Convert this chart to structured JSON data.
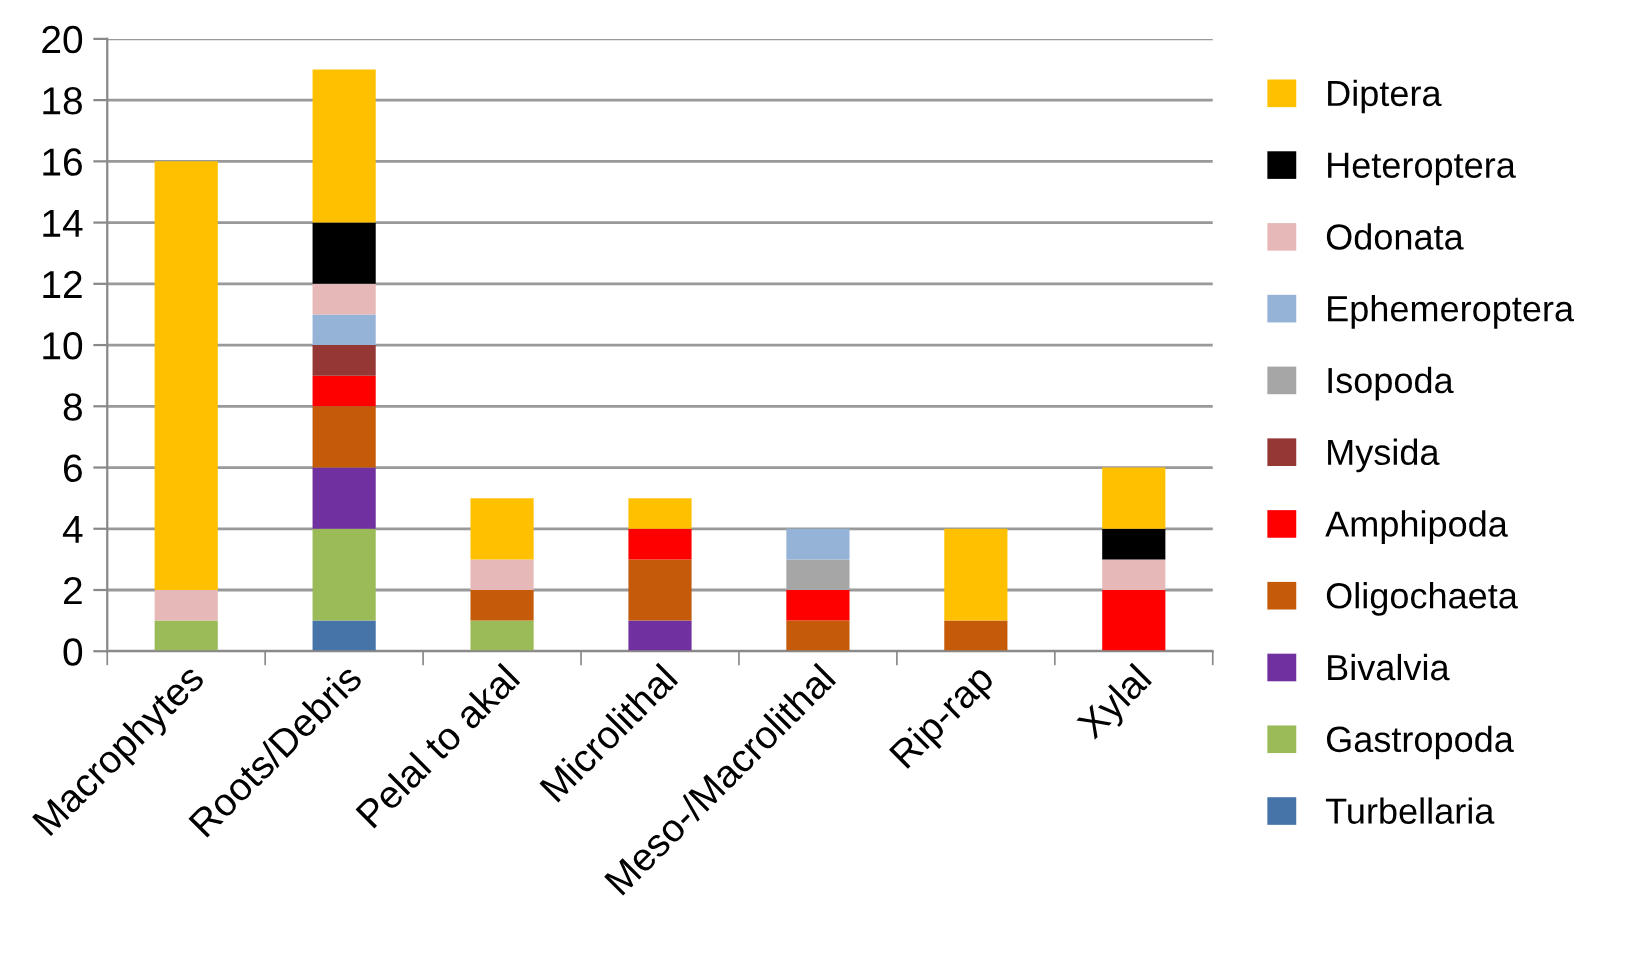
{
  "chart_data": {
    "type": "bar",
    "stacked": true,
    "categories": [
      "Macrophytes",
      "Roots/Debris",
      "Pelal to akal",
      "Microlithal",
      "Meso-/Macrolithal",
      "Rip-rap",
      "Xylal"
    ],
    "ylim": [
      0,
      20
    ],
    "yticks": [
      0,
      2,
      4,
      6,
      8,
      10,
      12,
      14,
      16,
      18,
      20
    ],
    "grid": "y",
    "legend": "right",
    "series": [
      {
        "name": "Turbellaria",
        "color": "#4674a9",
        "values": [
          0,
          1,
          0,
          0,
          0,
          0,
          0
        ]
      },
      {
        "name": "Gastropoda",
        "color": "#9bbb59",
        "values": [
          1,
          3,
          1,
          0,
          0,
          0,
          0
        ]
      },
      {
        "name": "Bivalvia",
        "color": "#7030a0",
        "values": [
          0,
          2,
          0,
          1,
          0,
          0,
          0
        ]
      },
      {
        "name": "Oligochaeta",
        "color": "#c55a09",
        "values": [
          0,
          2,
          1,
          2,
          1,
          1,
          0
        ]
      },
      {
        "name": "Amphipoda",
        "color": "#ff0000",
        "values": [
          0,
          1,
          0,
          1,
          1,
          0,
          2
        ]
      },
      {
        "name": "Mysida",
        "color": "#953735",
        "values": [
          0,
          1,
          0,
          0,
          0,
          0,
          0
        ]
      },
      {
        "name": "Isopoda",
        "color": "#a6a6a6",
        "values": [
          0,
          0,
          0,
          0,
          1,
          0,
          0
        ]
      },
      {
        "name": "Ephemeroptera",
        "color": "#95b3d7",
        "values": [
          0,
          1,
          0,
          0,
          1,
          0,
          0
        ]
      },
      {
        "name": "Odonata",
        "color": "#e6b9b8",
        "values": [
          1,
          1,
          1,
          0,
          0,
          0,
          1
        ]
      },
      {
        "name": "Heteroptera",
        "color": "#000000",
        "values": [
          0,
          2,
          0,
          0,
          0,
          0,
          1
        ]
      },
      {
        "name": "Diptera",
        "color": "#ffc000",
        "values": [
          14,
          5,
          2,
          1,
          0,
          3,
          2
        ]
      }
    ]
  }
}
